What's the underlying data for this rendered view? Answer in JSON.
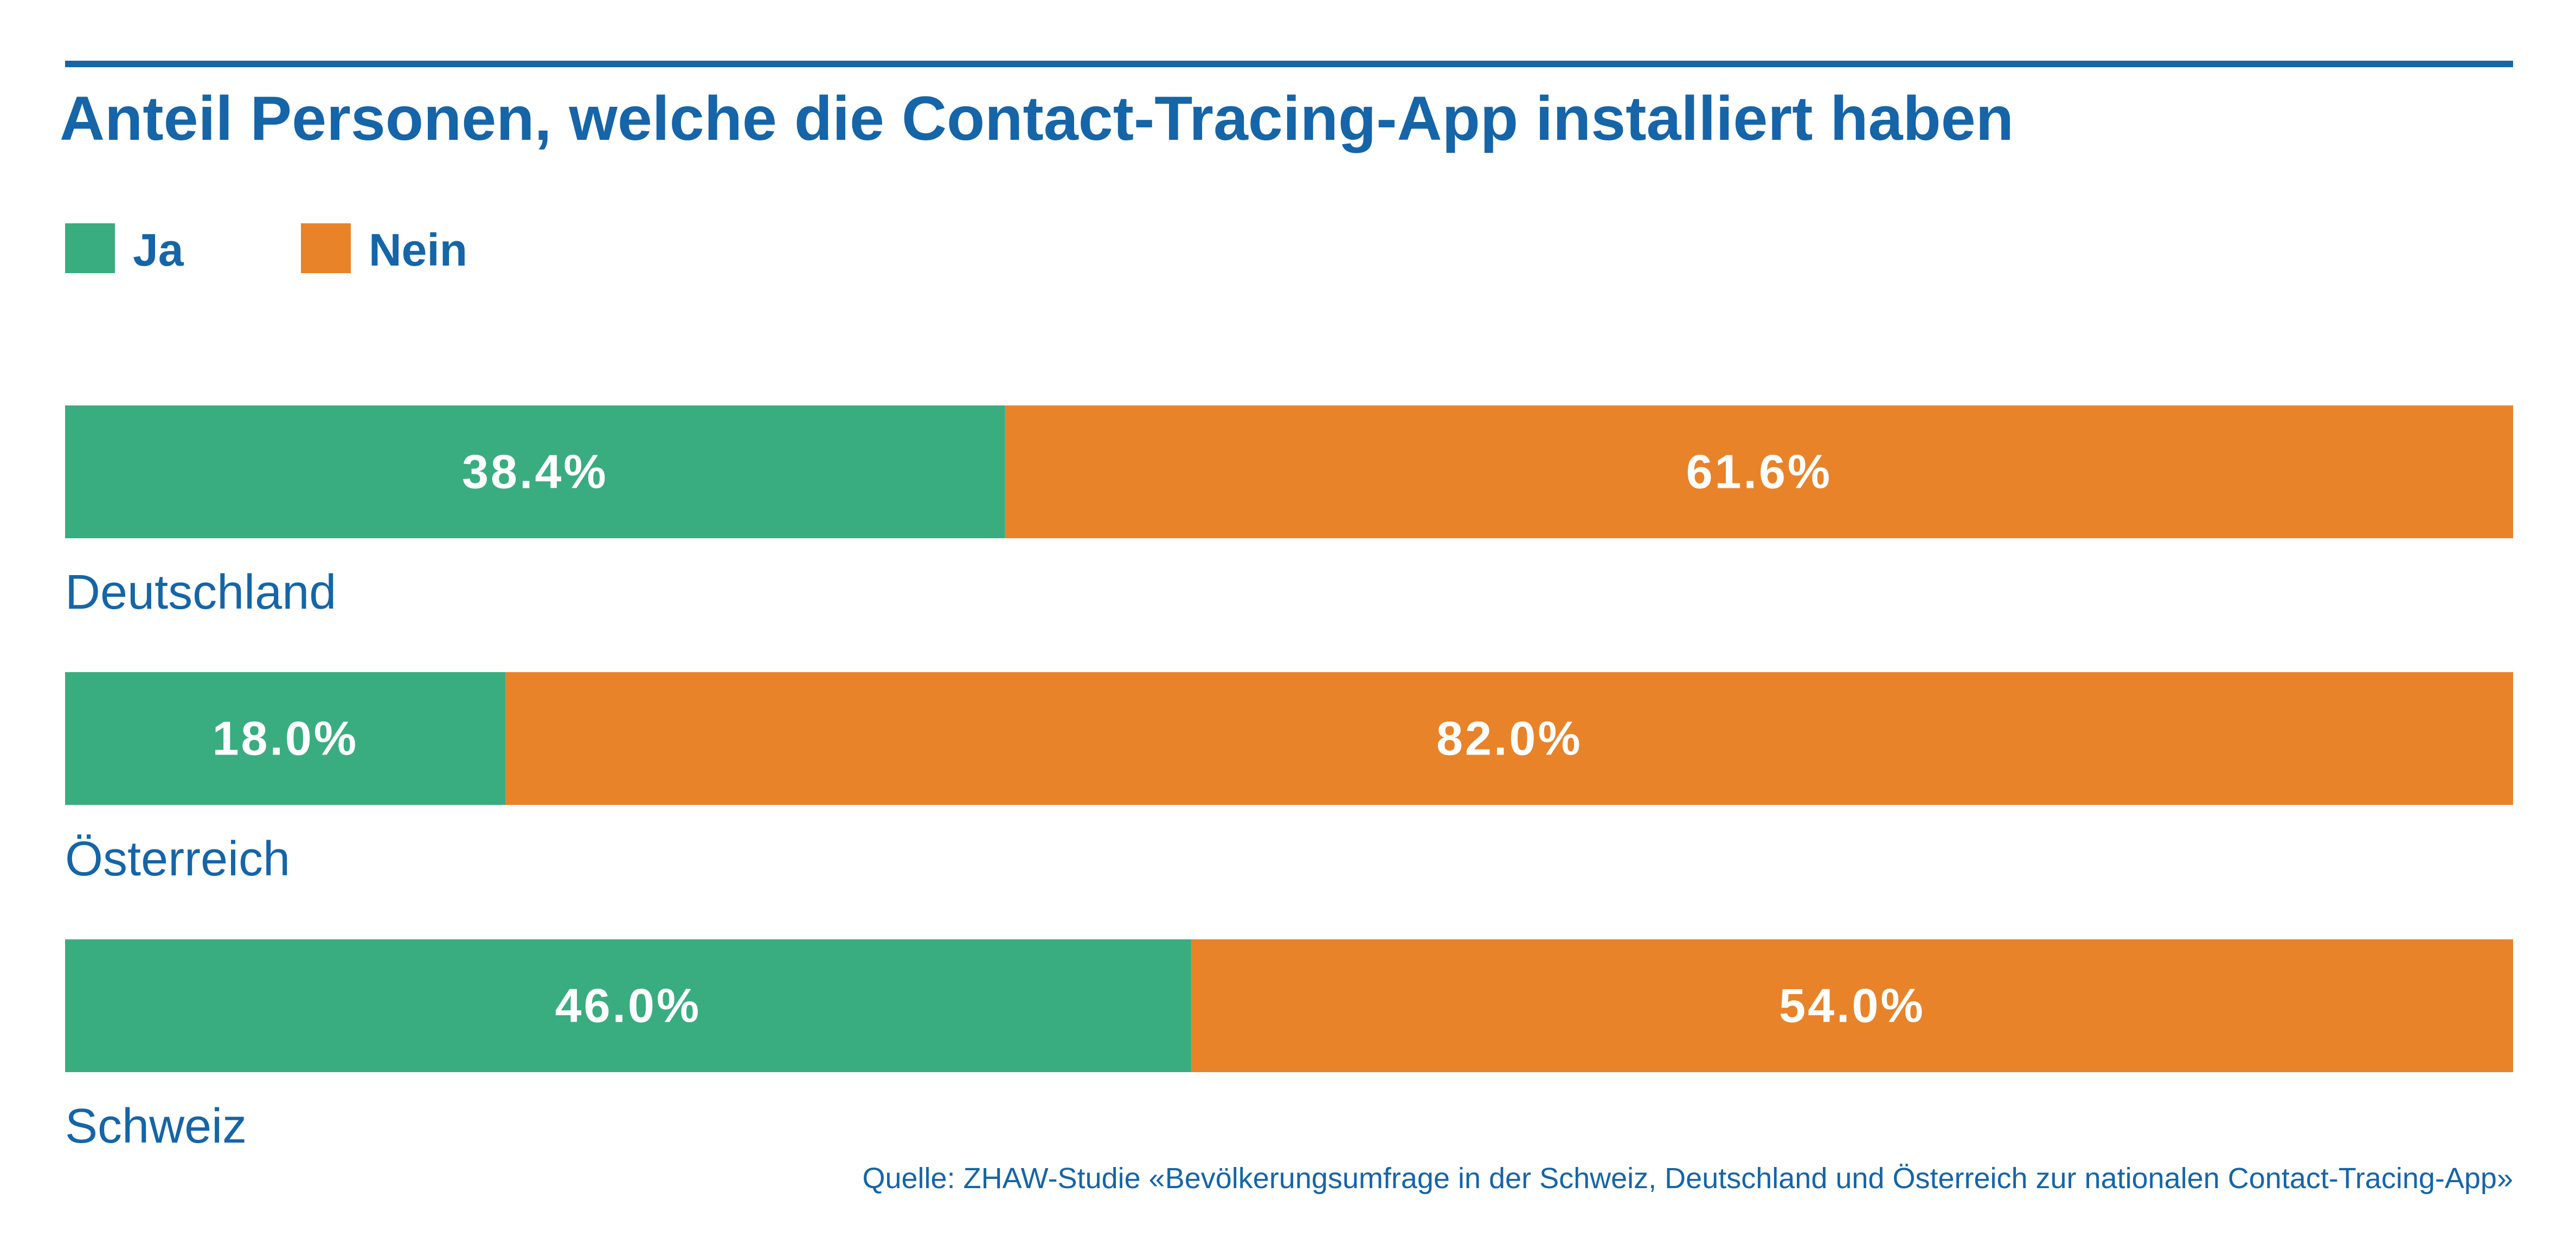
{
  "chart_data": {
    "type": "bar",
    "orientation": "horizontal",
    "stacked": true,
    "title": "Anteil Personen, welche die Contact-Tracing-App installiert haben",
    "legend": {
      "placement": "top-left"
    },
    "categories": [
      "Deutschland",
      "Österreich",
      "Schweiz"
    ],
    "series": [
      {
        "name": "Ja",
        "color": "#3aad80",
        "values": [
          38.4,
          18.0,
          46.0
        ],
        "labels": [
          "38.4%",
          "18.0%",
          "46.0%"
        ]
      },
      {
        "name": "Nein",
        "color": "#e8832a",
        "values": [
          61.6,
          82.0,
          54.0
        ],
        "labels": [
          "61.6%",
          "82.0%",
          "54.0%"
        ]
      }
    ],
    "xlim": [
      0,
      100
    ],
    "grid": false,
    "source": "Quelle: ZHAW-Studie «Bevölkerungsumfrage in der Schweiz, Deutschland und Österreich zur nationalen Contact-Tracing-App»"
  },
  "colors": {
    "text": "#1565a8",
    "rule": "#1565a8",
    "label_on_bar": "#ffffff"
  }
}
